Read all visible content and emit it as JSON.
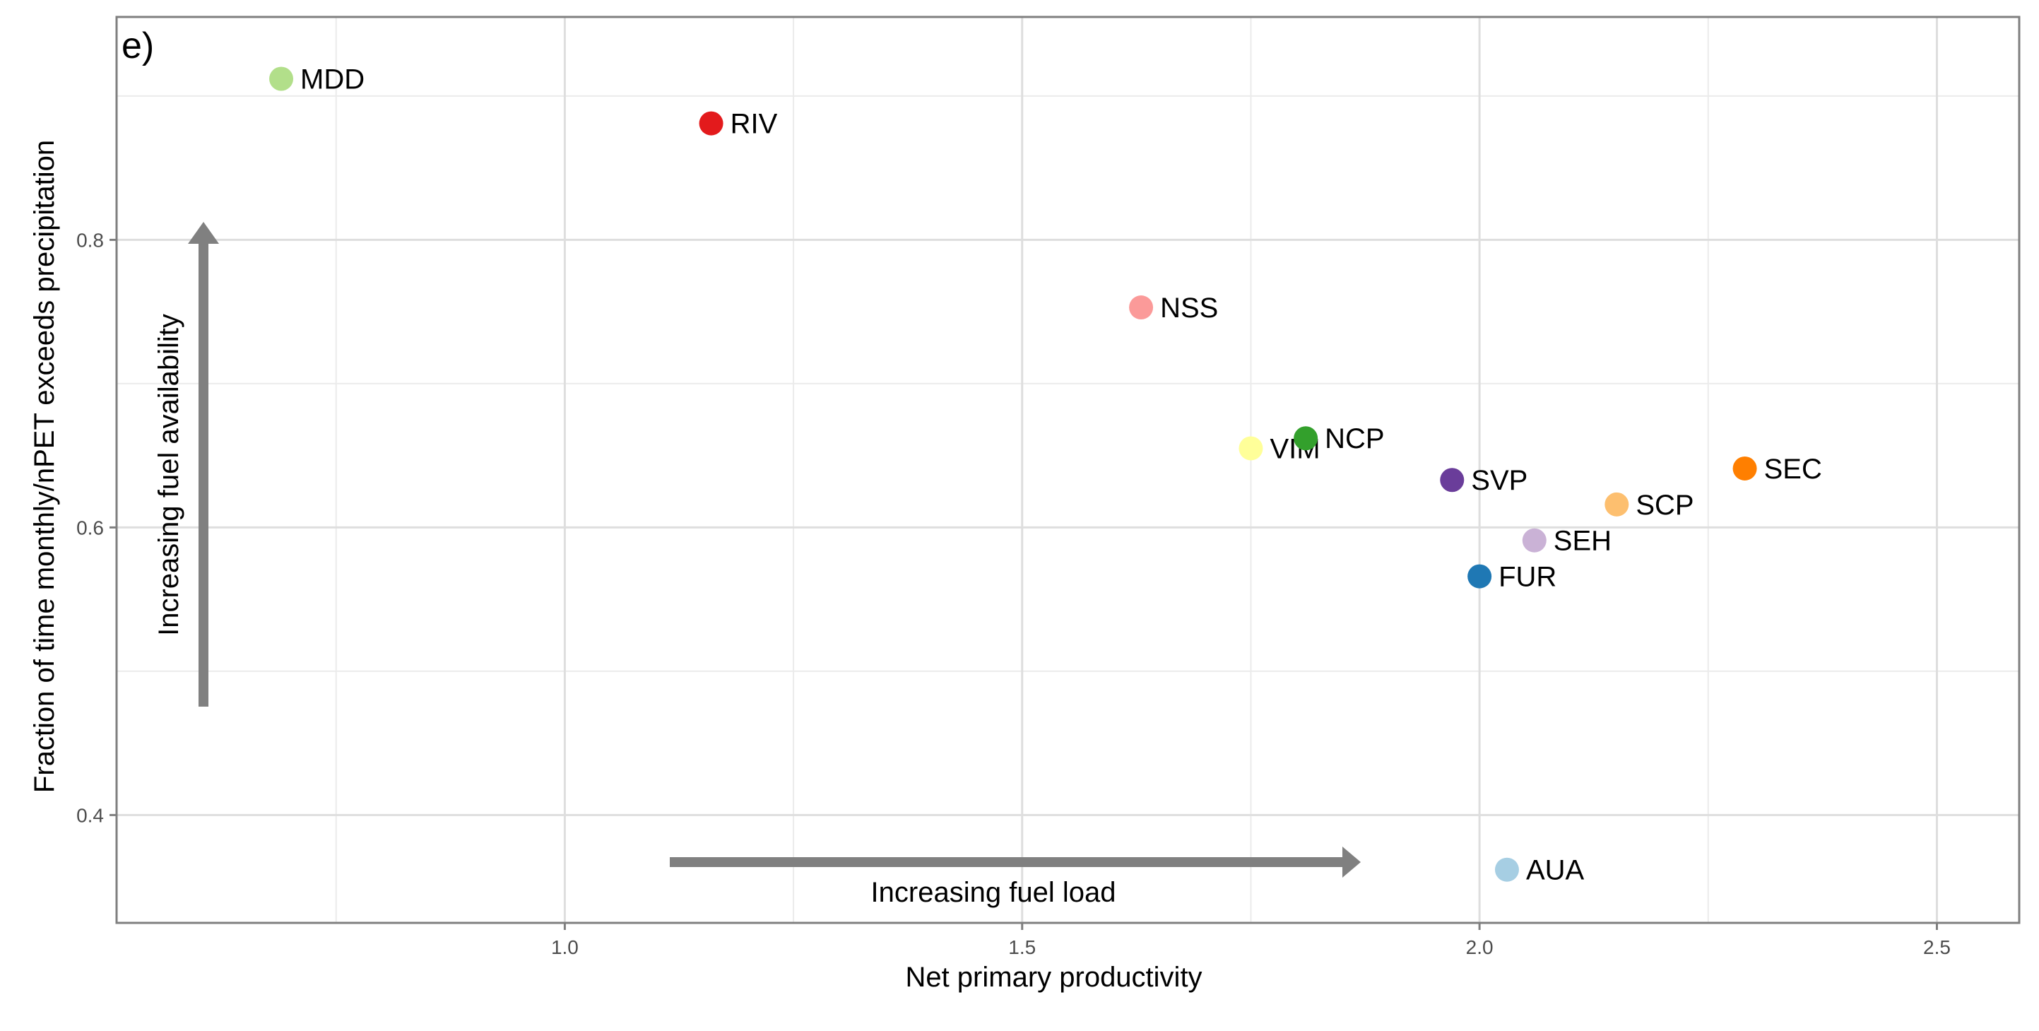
{
  "chart_data": {
    "type": "scatter",
    "panel_tag": "e)",
    "xlabel": "Net primary productivity",
    "ylabel": "Fraction of time monthly/nPET exceeds precipitation",
    "xlim": [
      0.51,
      2.59
    ],
    "ylim": [
      0.325,
      0.955
    ],
    "x_ticks": [
      1.0,
      1.5,
      2.0,
      2.5
    ],
    "y_ticks": [
      0.4,
      0.6,
      0.8
    ],
    "x_tick_labels": [
      "1.0",
      "1.5",
      "2.0",
      "2.5"
    ],
    "y_tick_labels": [
      "0.4",
      "0.6",
      "0.8"
    ],
    "grid": true,
    "points": [
      {
        "label": "MDD",
        "x": 0.69,
        "y": 0.912,
        "color": "#b2df8a"
      },
      {
        "label": "RIV",
        "x": 1.16,
        "y": 0.881,
        "color": "#e31a1c"
      },
      {
        "label": "NSS",
        "x": 1.63,
        "y": 0.753,
        "color": "#fb9a99"
      },
      {
        "label": "VIM",
        "x": 1.75,
        "y": 0.655,
        "color": "#ffff99"
      },
      {
        "label": "NCP",
        "x": 1.81,
        "y": 0.662,
        "color": "#33a02c"
      },
      {
        "label": "SVP",
        "x": 1.97,
        "y": 0.633,
        "color": "#6a3d9a"
      },
      {
        "label": "SEC",
        "x": 2.29,
        "y": 0.641,
        "color": "#ff7f00"
      },
      {
        "label": "SCP",
        "x": 2.15,
        "y": 0.616,
        "color": "#fdbf6f"
      },
      {
        "label": "SEH",
        "x": 2.06,
        "y": 0.591,
        "color": "#cab2d6"
      },
      {
        "label": "FUR",
        "x": 2.0,
        "y": 0.566,
        "color": "#1f78b4"
      },
      {
        "label": "AUA",
        "x": 2.03,
        "y": 0.362,
        "color": "#a6cee3"
      }
    ],
    "annotations": {
      "vertical_arrow_label": "Increasing fuel availability",
      "horizontal_arrow_label": "Increasing fuel load",
      "arrow_color": "#808080"
    }
  }
}
